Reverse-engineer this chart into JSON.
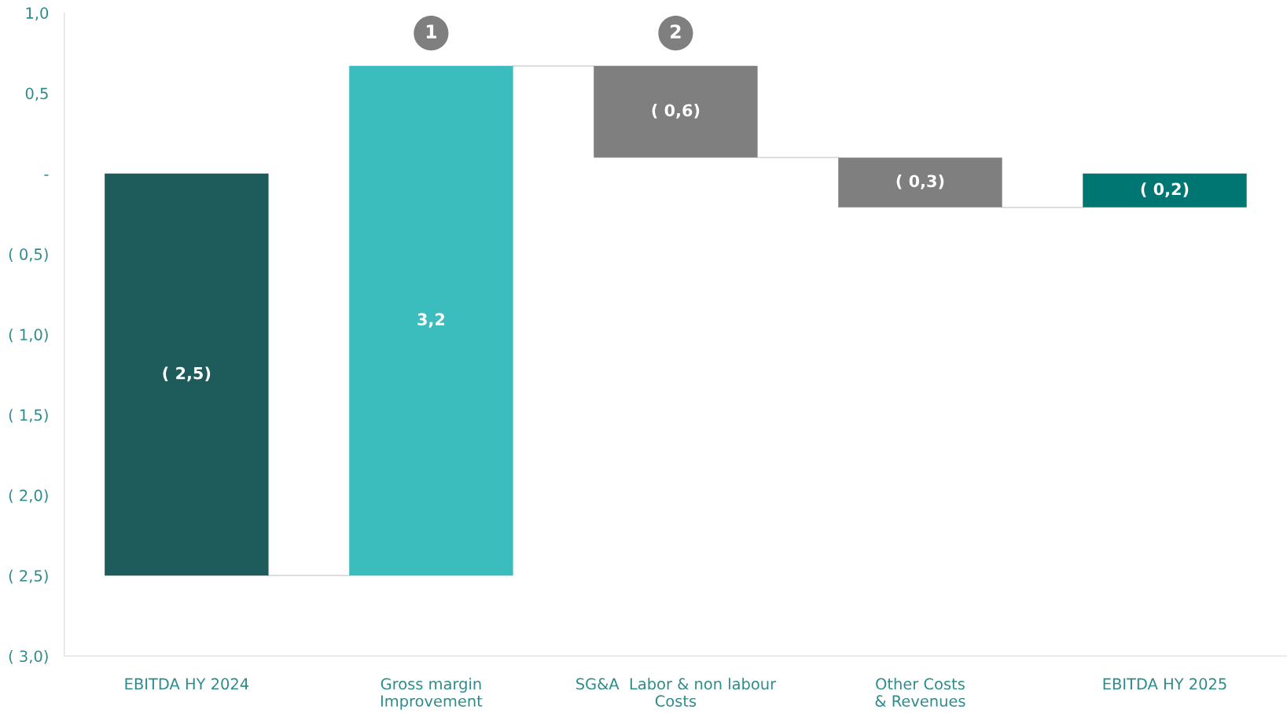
{
  "chart_data": {
    "type": "bar",
    "categories": [
      "EBITDA HY 2024",
      "Gross margin\nImprovement",
      "SG&A  Labor & non labour\nCosts",
      "Other Costs\n& Revenues",
      "EBITDA HY 2025"
    ],
    "values": [
      -2.5,
      3.17,
      -0.57,
      -0.31,
      -0.21
    ],
    "base": [
      0,
      -2.5,
      0.67,
      0.1,
      0
    ],
    "colors": [
      "#1e5c5c",
      "#3bbdbd",
      "#7f7f7f",
      "#7f7f7f",
      "#007672"
    ],
    "value_labels": [
      "( 2,5)",
      "3,2",
      "( 0,6)",
      "( 0,3)",
      "( 0,2)"
    ],
    "ylim": [
      -3.0,
      1.0
    ],
    "yticks": [
      {
        "value": 1.0,
        "label": "1,0"
      },
      {
        "value": 0.5,
        "label": "0,5"
      },
      {
        "value": 0,
        "label": "-"
      },
      {
        "value": -0.5,
        "label": "( 0,5)"
      },
      {
        "value": -1.0,
        "label": "( 1,0)"
      },
      {
        "value": -1.5,
        "label": "( 1,5)"
      },
      {
        "value": -2.0,
        "label": "( 2,0)"
      },
      {
        "value": -2.5,
        "label": "( 2,5)"
      },
      {
        "value": -3.0,
        "label": "( 3,0)"
      }
    ],
    "annotations": [
      {
        "text": "1",
        "x": "Gross margin\nImprovement",
        "y": 0.67
      },
      {
        "text": "2",
        "x": "SG&A  Labor & non labour\nCosts",
        "y": 0.67
      }
    ],
    "grid": false,
    "legend": false
  }
}
